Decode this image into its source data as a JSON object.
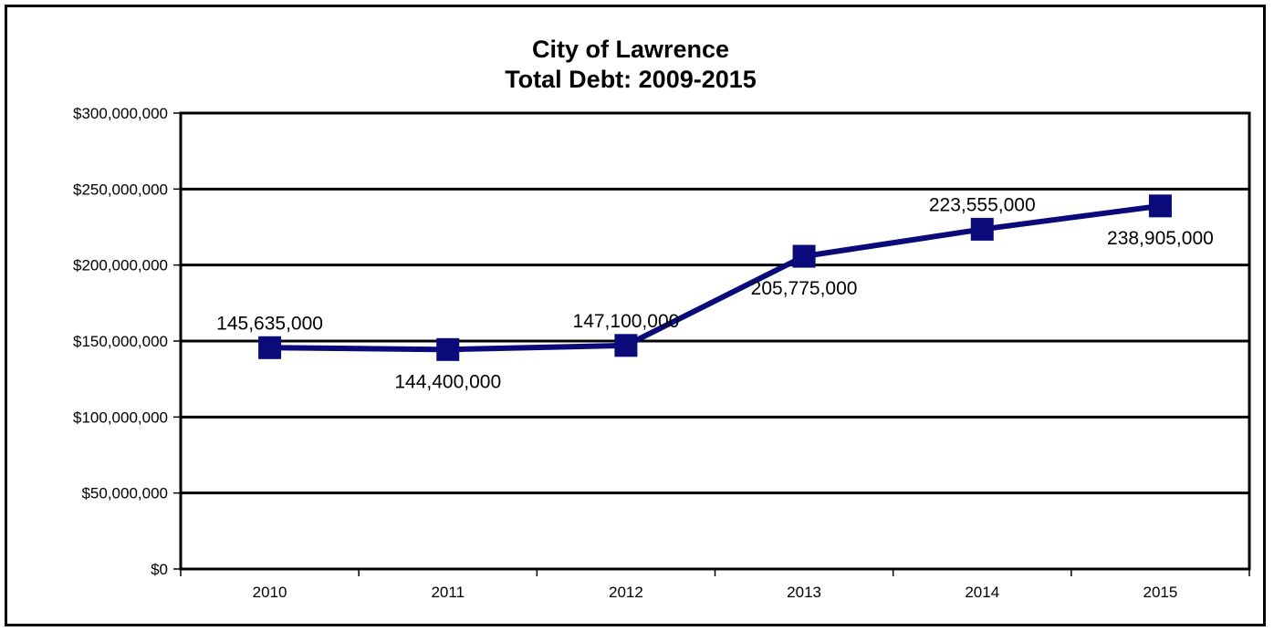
{
  "chart_data": {
    "type": "line",
    "title": [
      "City of Lawrence",
      "Total Debt: 2009-2015"
    ],
    "xlabel": "",
    "ylabel": "",
    "categories": [
      "2010",
      "2011",
      "2012",
      "2013",
      "2014",
      "2015"
    ],
    "series": [
      {
        "values": [
          145635000,
          144400000,
          147100000,
          205775000,
          223555000,
          238905000
        ],
        "data_labels": [
          "145,635,000",
          "144,400,000",
          "147,100,000",
          "205,775,000",
          "223,555,000",
          "238,905,000"
        ],
        "label_positions": [
          "above",
          "below",
          "above",
          "below",
          "above",
          "below"
        ]
      }
    ],
    "ylim": [
      0,
      300000000
    ],
    "yticks": [
      0,
      50000000,
      100000000,
      150000000,
      200000000,
      250000000,
      300000000
    ],
    "ytick_labels": [
      "$0",
      "$50,000,000",
      "$100,000,000",
      "$150,000,000",
      "$200,000,000",
      "$250,000,000",
      "$300,000,000"
    ],
    "grid": true,
    "legend": "none",
    "colors": {
      "line": "#0a0a7a",
      "marker": "#0a0a7a",
      "grid": "#000000",
      "frame": "#000000"
    },
    "marker": "square"
  }
}
